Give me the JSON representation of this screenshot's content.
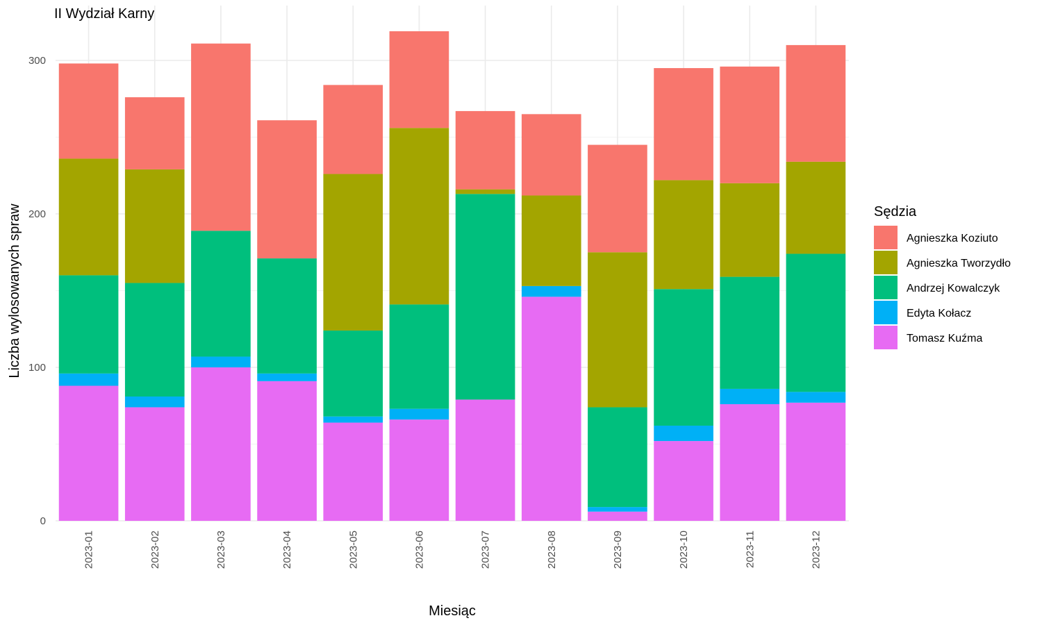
{
  "chart_data": {
    "type": "bar",
    "stacked": true,
    "title": "II Wydział Karny",
    "xlabel": "Miesiąc",
    "ylabel": "Liczba wylosowanych spraw",
    "ylim": [
      0,
      320
    ],
    "y_ticks": [
      0,
      100,
      200,
      300
    ],
    "grid": true,
    "legend_position": "right",
    "legend_title": "Sędzia",
    "categories": [
      "2023-01",
      "2023-02",
      "2023-03",
      "2023-04",
      "2023-05",
      "2023-06",
      "2023-07",
      "2023-08",
      "2023-09",
      "2023-10",
      "2023-11",
      "2023-12"
    ],
    "series": [
      {
        "name": "Agnieszka Koziuto",
        "color": "#F8766D",
        "values": [
          62,
          47,
          122,
          90,
          58,
          63,
          51,
          53,
          70,
          73,
          76,
          76
        ]
      },
      {
        "name": "Agnieszka Tworzydło",
        "color": "#A3A500",
        "values": [
          76,
          74,
          0,
          0,
          102,
          115,
          3,
          59,
          101,
          71,
          61,
          60
        ]
      },
      {
        "name": "Andrzej Kowalczyk",
        "color": "#00BF7D",
        "values": [
          64,
          74,
          82,
          75,
          56,
          68,
          134,
          0,
          65,
          89,
          73,
          90
        ]
      },
      {
        "name": "Edyta Kołacz",
        "color": "#00B0F6",
        "values": [
          8,
          7,
          7,
          5,
          4,
          7,
          0,
          7,
          3,
          10,
          10,
          7
        ]
      },
      {
        "name": "Tomasz Kuźma",
        "color": "#E76BF3",
        "values": [
          88,
          74,
          100,
          91,
          64,
          66,
          79,
          146,
          6,
          52,
          76,
          77
        ]
      }
    ]
  }
}
